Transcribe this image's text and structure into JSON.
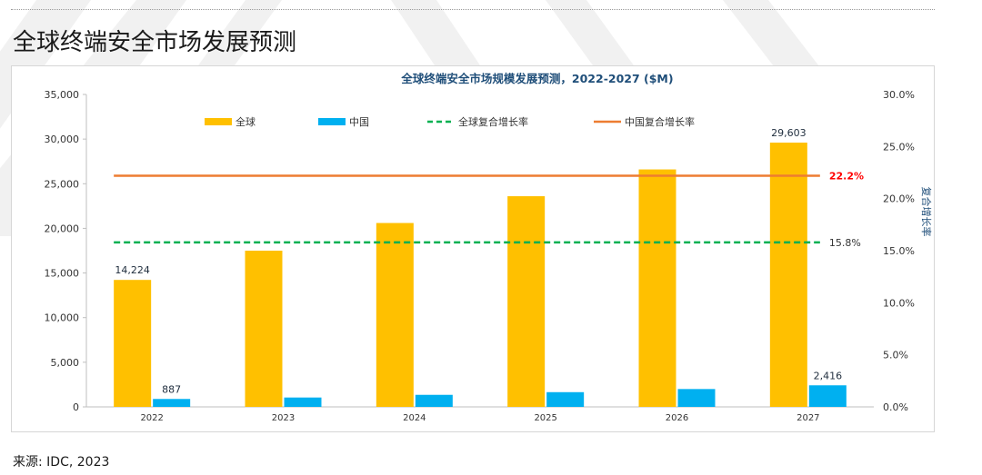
{
  "page": {
    "title": "全球终端安全市场发展预测",
    "source": "来源: IDC, 2023"
  },
  "colors": {
    "global": "#FFC000",
    "china": "#00B0F0",
    "global_cagr": "#00B050",
    "china_cagr": "#ED7D31",
    "china_cagr_label": "#FF0000",
    "title": "#1F4E79",
    "axis_text": "#333333"
  },
  "chart_data": {
    "type": "bar",
    "title": "全球终端安全市场规模发展预测，2022-2027 ($M)",
    "categories": [
      "2022",
      "2023",
      "2024",
      "2025",
      "2026",
      "2027"
    ],
    "series": [
      {
        "name": "全球",
        "values": [
          14224,
          17500,
          20600,
          23600,
          26600,
          29603
        ]
      },
      {
        "name": "中国",
        "values": [
          887,
          1050,
          1350,
          1650,
          2000,
          2416
        ]
      }
    ],
    "lines": [
      {
        "name": "全球复合增长率",
        "value": 15.8,
        "label": "15.8%",
        "style": "dashed",
        "axis": "right"
      },
      {
        "name": "中国复合增长率",
        "value": 22.2,
        "label": "22.2%",
        "style": "solid",
        "axis": "right"
      }
    ],
    "data_labels": [
      {
        "series": "全球",
        "category": "2022",
        "text": "14,224"
      },
      {
        "series": "中国",
        "category": "2022",
        "text": "887"
      },
      {
        "series": "全球",
        "category": "2027",
        "text": "29,603"
      },
      {
        "series": "中国",
        "category": "2027",
        "text": "2,416"
      }
    ],
    "ylim": [
      0,
      35000
    ],
    "yticks": [
      0,
      5000,
      10000,
      15000,
      20000,
      25000,
      30000,
      35000
    ],
    "ytick_labels": [
      "0",
      "5,000",
      "10,000",
      "15,000",
      "20,000",
      "25,000",
      "30,000",
      "35,000"
    ],
    "y2lim": [
      0,
      30
    ],
    "y2ticks": [
      0,
      5,
      10,
      15,
      20,
      25,
      30
    ],
    "y2tick_labels": [
      "0.0%",
      "5.0%",
      "10.0%",
      "15.0%",
      "20.0%",
      "25.0%",
      "30.0%"
    ],
    "y2label": "复合增长率",
    "legend": {
      "position": "top",
      "items": [
        {
          "label": "全球",
          "kind": "bar",
          "color_key": "global"
        },
        {
          "label": "中国",
          "kind": "bar",
          "color_key": "china"
        },
        {
          "label": "全球复合增长率",
          "kind": "dashed",
          "color_key": "global_cagr"
        },
        {
          "label": "中国复合增长率",
          "kind": "solid",
          "color_key": "china_cagr"
        }
      ]
    },
    "grid": false
  }
}
